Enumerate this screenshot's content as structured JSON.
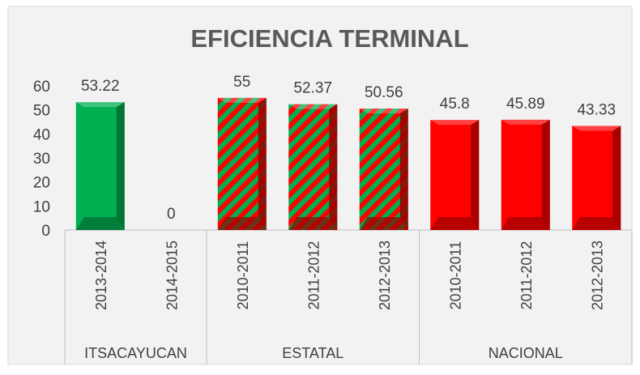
{
  "chart_data": {
    "type": "bar",
    "title": "EFICIENCIA TERMINAL",
    "categories": [
      "2013-2014",
      "2014-2015",
      "2010-2011",
      "2011-2012",
      "2012-2013",
      "2010-2011",
      "2011-2012",
      "2012-2013"
    ],
    "values": [
      53.22,
      0,
      55,
      52.37,
      50.56,
      45.8,
      45.89,
      43.33
    ],
    "groups": [
      {
        "name": "ITSACAYUCAN",
        "span": 2,
        "color": "#00b050"
      },
      {
        "name": "ESTATAL",
        "span": 3,
        "color": "#00b050",
        "hatch": "#ff0000"
      },
      {
        "name": "NACIONAL",
        "span": 3,
        "color": "#ff0000"
      }
    ],
    "ylim": [
      0,
      60
    ],
    "yticks": [
      0,
      10,
      20,
      30,
      40,
      50,
      60
    ],
    "grid": false
  }
}
